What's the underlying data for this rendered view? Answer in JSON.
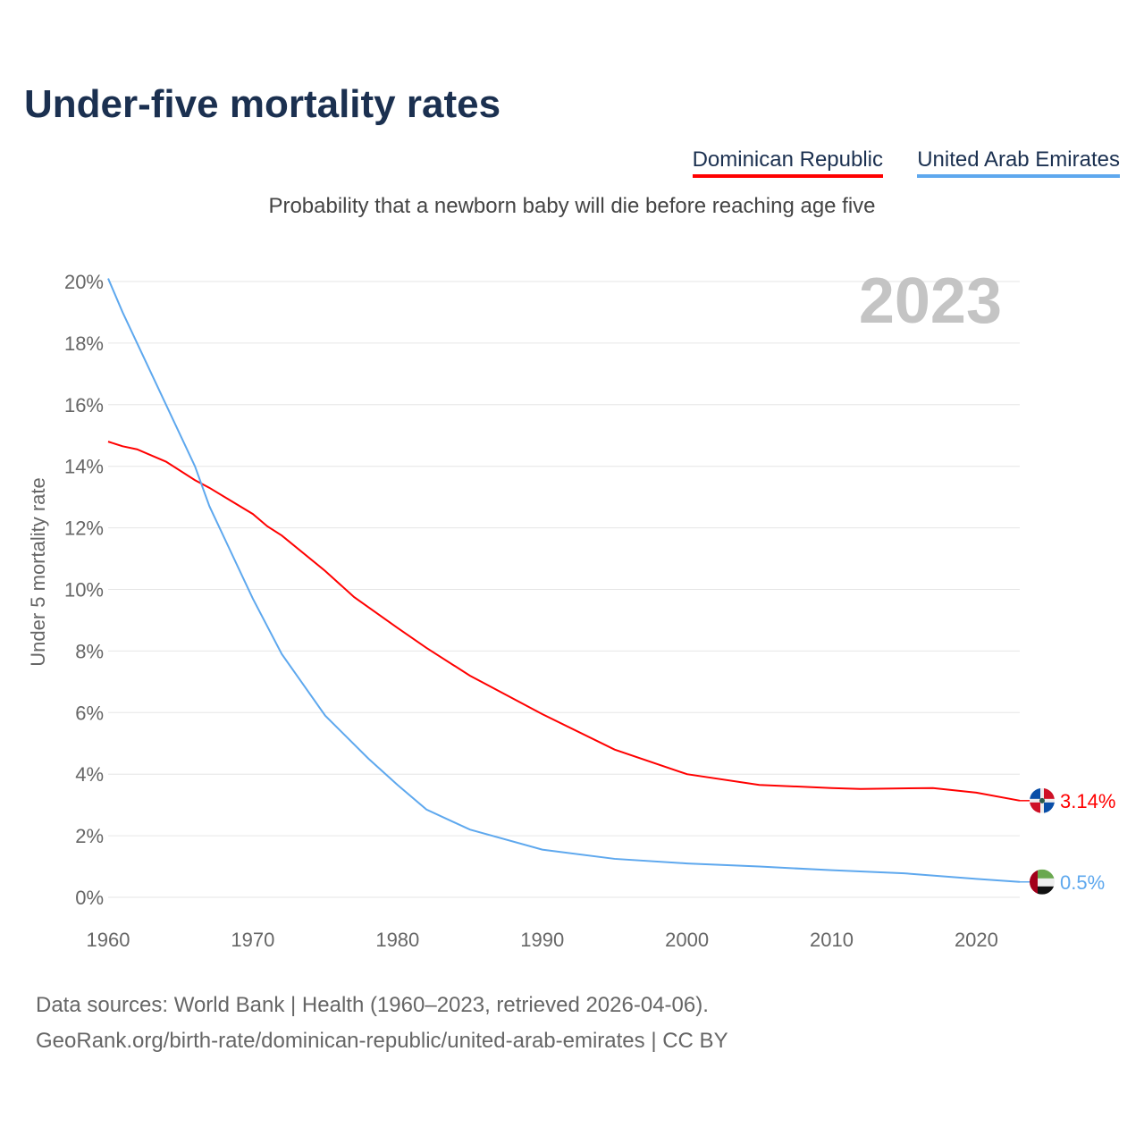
{
  "title": "Under-five mortality rates",
  "legend": [
    "Dominican Republic",
    "United Arab Emirates"
  ],
  "footer": [
    "Data sources: World Bank | Health (1960–2023, retrieved 2026-04-06).",
    "GeoRank.org/birth-rate/dominican-republic/united-arab-emirates | CC BY"
  ],
  "chart_data": {
    "type": "line",
    "title": "Under-five mortality rates",
    "subtitle": "Probability that a newborn baby will die before reaching age five",
    "ylabel": "Under 5 mortality rate",
    "xlabel": "",
    "year_label": "2023",
    "xlim": [
      1960,
      2023
    ],
    "ylim": [
      0,
      20
    ],
    "xticks": [
      1960,
      1970,
      1980,
      1990,
      2000,
      2010,
      2020
    ],
    "yticks": [
      "0%",
      "2%",
      "4%",
      "6%",
      "8%",
      "10%",
      "12%",
      "14%",
      "16%",
      "18%",
      "20%"
    ],
    "grid": true,
    "legend_position": "top-right",
    "series": [
      {
        "name": "Dominican Republic",
        "color": "#ff0000",
        "end_label": "3.14%",
        "flag": "dominican-republic-flag-icon",
        "x": [
          1960,
          1961,
          1962,
          1964,
          1966,
          1967,
          1970,
          1971,
          1972,
          1975,
          1977,
          1980,
          1982,
          1985,
          1990,
          1995,
          2000,
          2005,
          2010,
          2012,
          2017,
          2020,
          2023
        ],
        "y": [
          14.8,
          14.65,
          14.55,
          14.15,
          13.55,
          13.3,
          12.45,
          12.05,
          11.75,
          10.6,
          9.75,
          8.75,
          8.1,
          7.2,
          5.95,
          4.8,
          4.0,
          3.65,
          3.55,
          3.52,
          3.55,
          3.4,
          3.14
        ]
      },
      {
        "name": "United Arab Emirates",
        "color": "#5ea8ee",
        "end_label": "0.5%",
        "flag": "uae-flag-icon",
        "x": [
          1960,
          1961,
          1962,
          1964,
          1966,
          1967,
          1970,
          1972,
          1975,
          1978,
          1980,
          1982,
          1985,
          1990,
          1995,
          2000,
          2005,
          2010,
          2015,
          2020,
          2023
        ],
        "y": [
          20.1,
          19.0,
          18.0,
          16.0,
          14.0,
          12.7,
          9.7,
          7.9,
          5.9,
          4.5,
          3.65,
          2.85,
          2.2,
          1.55,
          1.25,
          1.1,
          1.0,
          0.88,
          0.78,
          0.6,
          0.5
        ]
      }
    ]
  }
}
